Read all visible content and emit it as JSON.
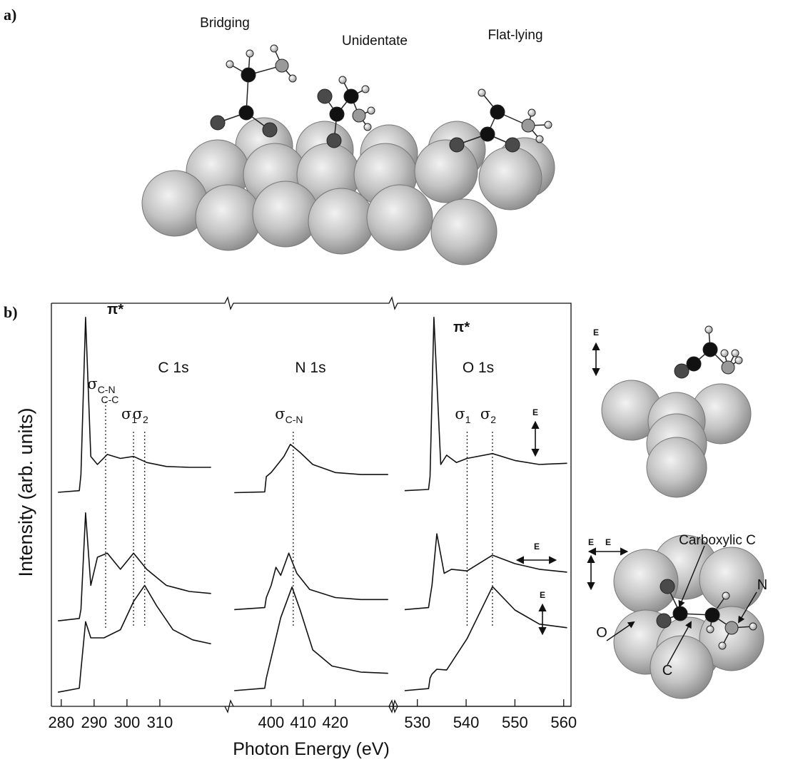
{
  "figure": {
    "panel_a_label": "a)",
    "panel_b_label": "b)",
    "configurations": [
      "Bridging",
      "Unidentate",
      "Flat-lying"
    ],
    "polarization_label": "E",
    "inset_labels": [
      "Carboxylic C",
      "N",
      "O",
      "C"
    ]
  },
  "chart_data": {
    "type": "line",
    "ylabel": "Intensity (arb. units)",
    "xlabel": "Photon Energy (eV)",
    "ylim": [
      0,
      100
    ],
    "color": "#111111",
    "segments": [
      {
        "edge": "C 1s",
        "peak_label": "π*",
        "xlim": [
          277,
          330
        ],
        "xticks": [
          280,
          290,
          300,
          310
        ],
        "markers": [
          {
            "x": 293.5,
            "symbol": "σ",
            "sub": "C-N",
            "sub2": "C-C"
          },
          {
            "x": 302,
            "symbol": "σ",
            "sub": "1"
          },
          {
            "x": 305.4,
            "symbol": "σ",
            "sub": "2"
          }
        ],
        "series": [
          {
            "x": [
              279,
              285.5,
              286,
              287.4,
              289,
              291,
              294,
              298,
              302,
              306,
              312,
              319,
              325.6
            ],
            "values": [
              53.1,
              53.5,
              57.5,
              96.5,
              62,
              60,
              62.5,
              61.5,
              62,
              60.5,
              59.5,
              59.3,
              59.3
            ]
          },
          {
            "x": [
              279,
              285.5,
              286,
              287.4,
              289,
              291,
              294,
              298,
              302,
              306,
              312,
              319,
              325.6
            ],
            "values": [
              21.2,
              21.8,
              24,
              48,
              30,
              37,
              38,
              34,
              38,
              34,
              30,
              28.5,
              28
            ]
          },
          {
            "x": [
              279,
              285.5,
              286,
              287.4,
              289,
              293,
              298,
              302,
              305.4,
              309,
              314,
              320,
              325.6
            ],
            "values": [
              3.5,
              4.5,
              9,
              21,
              17,
              17,
              19,
              26,
              30,
              25,
              19,
              16.5,
              15.5
            ]
          }
        ]
      },
      {
        "edge": "N 1s",
        "xlim": [
          388,
          437
        ],
        "xticks": [
          400,
          410,
          420
        ],
        "markers": [
          {
            "x": 406.9,
            "symbol": "σ",
            "sub": "C-N"
          }
        ],
        "series": [
          {
            "x": [
              388.5,
              398,
              398.5,
              400,
              402,
              404,
              406,
              409,
              413,
              420,
              428,
              436.5
            ],
            "values": [
              53,
              53.2,
              57,
              58,
              60,
              62,
              65,
              63,
              60,
              58,
              57.5,
              57.5
            ]
          },
          {
            "x": [
              388.5,
              398,
              398.5,
              400,
              401.5,
              403,
              405.5,
              408,
              412,
              420,
              428,
              436.5
            ],
            "values": [
              24,
              24.5,
              27,
              30,
              34.5,
              32.5,
              38,
              33,
              29,
              27,
              26.5,
              26.5
            ]
          },
          {
            "x": [
              388.5,
              398,
              398.5,
              400,
              403,
              406.5,
              409,
              413,
              419,
              428,
              436.5
            ],
            "values": [
              3.9,
              4.5,
              7,
              12,
              22,
              29.6,
              24,
              14,
              10,
              8.5,
              8.2
            ]
          }
        ]
      },
      {
        "edge": "O 1s",
        "peak_label": "π*",
        "xlim": [
          525.8,
          561.5
        ],
        "xticks": [
          530,
          540,
          550,
          560
        ],
        "markers": [
          {
            "x": 540.2,
            "symbol": "σ",
            "sub": "1"
          },
          {
            "x": 545.4,
            "symbol": "σ",
            "sub": "2"
          }
        ],
        "series": [
          {
            "x": [
              527.4,
              532.3,
              532.6,
              533.4,
              534.8,
              536,
              538,
              540.2,
              545.4,
              550,
              555,
              560.7
            ],
            "values": [
              53.5,
              53.8,
              57,
              96.5,
              60,
              62.3,
              60.5,
              61.5,
              62.7,
              61,
              60,
              60.3
            ]
          },
          {
            "x": [
              527.4,
              532.3,
              532.6,
              533,
              534,
              535.5,
              537,
              540.2,
              545.4,
              550,
              555,
              560.7
            ],
            "values": [
              24,
              24.5,
              27,
              30,
              42.8,
              33,
              34,
              33.6,
              37.5,
              35.4,
              34,
              33.3
            ]
          },
          {
            "x": [
              527.4,
              532.3,
              532.6,
              533,
              534,
              536,
              540.2,
              545.4,
              550,
              555,
              560.7
            ],
            "values": [
              3.9,
              4.4,
              7,
              8,
              9.2,
              9,
              16.8,
              29.7,
              23.9,
              20.4,
              19.5
            ]
          }
        ]
      }
    ]
  }
}
